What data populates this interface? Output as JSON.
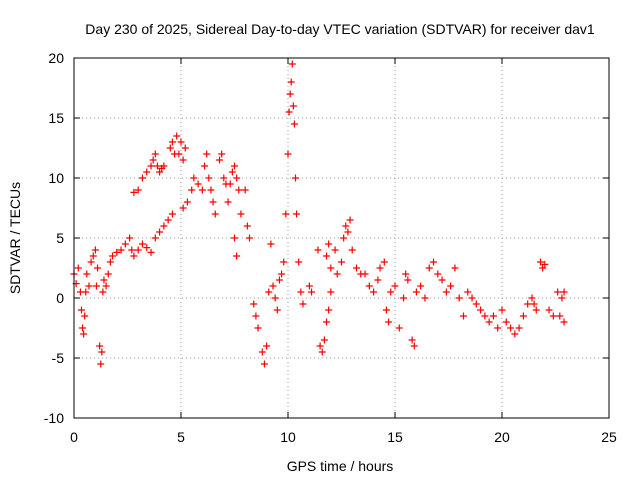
{
  "chart_data": {
    "type": "scatter",
    "title": "Day 230 of 2025, Sidereal Day-to-day VTEC variation (SDTVAR) for receiver dav1",
    "xlabel": "GPS time / hours",
    "ylabel": "SDTVAR / TECUs",
    "xlim": [
      0,
      25
    ],
    "ylim": [
      -10,
      20
    ],
    "xticks": [
      0,
      5,
      10,
      15,
      20,
      25
    ],
    "yticks": [
      -10,
      -5,
      0,
      5,
      10,
      15,
      20
    ],
    "xtick_labels": [
      "0",
      "5",
      "10",
      "15",
      "20",
      "25"
    ],
    "ytick_labels": [
      "-10",
      "-5",
      "0",
      "5",
      "10",
      "15",
      "20"
    ],
    "grid": true,
    "marker": "plus",
    "color": "#ff0000",
    "series": [
      {
        "name": "SDTVAR",
        "points": [
          [
            0.0,
            2.0
          ],
          [
            0.1,
            1.2
          ],
          [
            0.2,
            2.5
          ],
          [
            0.3,
            0.5
          ],
          [
            0.35,
            -1.0
          ],
          [
            0.4,
            -2.5
          ],
          [
            0.45,
            -3.0
          ],
          [
            0.5,
            -1.5
          ],
          [
            0.55,
            0.5
          ],
          [
            0.6,
            2.0
          ],
          [
            0.7,
            1.0
          ],
          [
            0.8,
            3.0
          ],
          [
            0.9,
            3.5
          ],
          [
            1.0,
            4.0
          ],
          [
            1.05,
            1.0
          ],
          [
            1.1,
            2.5
          ],
          [
            1.2,
            -4.0
          ],
          [
            1.25,
            -5.5
          ],
          [
            1.3,
            -4.5
          ],
          [
            1.35,
            0.5
          ],
          [
            1.4,
            1.5
          ],
          [
            1.5,
            1.0
          ],
          [
            1.6,
            2.0
          ],
          [
            1.7,
            3.0
          ],
          [
            1.8,
            3.5
          ],
          [
            2.0,
            3.8
          ],
          [
            2.2,
            4.0
          ],
          [
            2.4,
            4.5
          ],
          [
            2.6,
            5.0
          ],
          [
            2.7,
            4.0
          ],
          [
            2.8,
            8.8
          ],
          [
            3.0,
            9.0
          ],
          [
            3.2,
            10.0
          ],
          [
            3.4,
            10.5
          ],
          [
            3.6,
            11.0
          ],
          [
            3.7,
            11.5
          ],
          [
            3.8,
            12.0
          ],
          [
            3.9,
            11.0
          ],
          [
            4.0,
            10.5
          ],
          [
            4.1,
            10.8
          ],
          [
            4.2,
            11.0
          ],
          [
            2.8,
            3.5
          ],
          [
            3.0,
            4.0
          ],
          [
            3.2,
            4.5
          ],
          [
            3.4,
            4.2
          ],
          [
            3.6,
            3.8
          ],
          [
            3.8,
            5.0
          ],
          [
            4.0,
            5.5
          ],
          [
            4.2,
            6.0
          ],
          [
            4.4,
            6.5
          ],
          [
            4.6,
            7.0
          ],
          [
            4.5,
            12.5
          ],
          [
            4.6,
            13.0
          ],
          [
            4.7,
            12.0
          ],
          [
            4.8,
            13.5
          ],
          [
            4.9,
            12.0
          ],
          [
            5.0,
            13.0
          ],
          [
            5.1,
            11.5
          ],
          [
            5.2,
            12.5
          ],
          [
            5.1,
            7.5
          ],
          [
            5.3,
            8.0
          ],
          [
            5.5,
            9.0
          ],
          [
            5.6,
            10.0
          ],
          [
            5.8,
            9.5
          ],
          [
            6.0,
            9.0
          ],
          [
            6.1,
            11.0
          ],
          [
            6.2,
            12.0
          ],
          [
            6.3,
            10.0
          ],
          [
            6.4,
            9.0
          ],
          [
            6.5,
            8.0
          ],
          [
            6.6,
            7.0
          ],
          [
            6.8,
            11.5
          ],
          [
            6.9,
            12.0
          ],
          [
            7.0,
            10.0
          ],
          [
            7.1,
            9.5
          ],
          [
            7.2,
            8.0
          ],
          [
            7.3,
            9.5
          ],
          [
            7.4,
            10.5
          ],
          [
            7.5,
            11.0
          ],
          [
            7.6,
            10.0
          ],
          [
            7.7,
            9.0
          ],
          [
            7.5,
            5.0
          ],
          [
            7.6,
            3.5
          ],
          [
            7.8,
            7.0
          ],
          [
            8.0,
            9.0
          ],
          [
            8.1,
            6.0
          ],
          [
            8.2,
            5.0
          ],
          [
            8.4,
            -0.5
          ],
          [
            8.5,
            -1.5
          ],
          [
            8.6,
            -2.5
          ],
          [
            8.8,
            -4.5
          ],
          [
            8.9,
            -5.5
          ],
          [
            9.0,
            -4.0
          ],
          [
            9.1,
            0.5
          ],
          [
            9.2,
            4.5
          ],
          [
            9.3,
            1.0
          ],
          [
            9.4,
            0.0
          ],
          [
            9.5,
            -1.0
          ],
          [
            9.6,
            1.5
          ],
          [
            9.7,
            2.0
          ],
          [
            9.8,
            3.0
          ],
          [
            9.9,
            7.0
          ],
          [
            10.0,
            12.0
          ],
          [
            10.05,
            15.5
          ],
          [
            10.1,
            17.0
          ],
          [
            10.15,
            18.0
          ],
          [
            10.2,
            19.5
          ],
          [
            10.25,
            16.0
          ],
          [
            10.3,
            14.5
          ],
          [
            10.35,
            10.0
          ],
          [
            10.4,
            7.0
          ],
          [
            10.5,
            3.0
          ],
          [
            10.6,
            0.5
          ],
          [
            10.7,
            -0.5
          ],
          [
            11.0,
            1.0
          ],
          [
            11.1,
            0.5
          ],
          [
            11.4,
            4.0
          ],
          [
            11.5,
            -4.0
          ],
          [
            11.6,
            -4.5
          ],
          [
            11.7,
            -3.5
          ],
          [
            11.8,
            -2.0
          ],
          [
            11.9,
            -1.0
          ],
          [
            12.0,
            0.5
          ],
          [
            11.8,
            3.5
          ],
          [
            11.9,
            4.5
          ],
          [
            12.0,
            2.5
          ],
          [
            12.2,
            4.0
          ],
          [
            12.3,
            2.0
          ],
          [
            12.5,
            3.0
          ],
          [
            12.6,
            5.0
          ],
          [
            12.7,
            6.0
          ],
          [
            12.8,
            5.5
          ],
          [
            12.9,
            6.5
          ],
          [
            13.0,
            4.0
          ],
          [
            13.2,
            2.5
          ],
          [
            13.4,
            2.0
          ],
          [
            13.6,
            2.0
          ],
          [
            13.8,
            1.0
          ],
          [
            14.0,
            0.5
          ],
          [
            14.2,
            1.5
          ],
          [
            14.3,
            2.5
          ],
          [
            14.5,
            3.0
          ],
          [
            14.6,
            -1.0
          ],
          [
            14.7,
            -2.0
          ],
          [
            14.8,
            0.5
          ],
          [
            15.0,
            1.0
          ],
          [
            15.2,
            -2.5
          ],
          [
            15.4,
            0.0
          ],
          [
            15.5,
            2.0
          ],
          [
            15.6,
            1.5
          ],
          [
            15.8,
            -3.5
          ],
          [
            15.9,
            -4.0
          ],
          [
            16.0,
            0.5
          ],
          [
            16.2,
            1.0
          ],
          [
            16.4,
            0.0
          ],
          [
            16.6,
            2.5
          ],
          [
            16.8,
            3.0
          ],
          [
            17.0,
            2.0
          ],
          [
            17.2,
            1.5
          ],
          [
            17.4,
            0.5
          ],
          [
            17.6,
            1.0
          ],
          [
            17.8,
            2.5
          ],
          [
            18.0,
            0.0
          ],
          [
            18.2,
            -1.5
          ],
          [
            18.4,
            0.5
          ],
          [
            18.6,
            0.0
          ],
          [
            18.8,
            -0.5
          ],
          [
            19.0,
            -1.0
          ],
          [
            19.2,
            -1.5
          ],
          [
            19.4,
            -2.0
          ],
          [
            19.6,
            -1.5
          ],
          [
            19.8,
            -2.5
          ],
          [
            20.0,
            -1.0
          ],
          [
            20.2,
            -2.0
          ],
          [
            20.4,
            -2.5
          ],
          [
            20.6,
            -3.0
          ],
          [
            20.8,
            -2.5
          ],
          [
            21.0,
            -1.5
          ],
          [
            21.2,
            -0.5
          ],
          [
            21.4,
            0.0
          ],
          [
            21.5,
            -0.5
          ],
          [
            21.6,
            -1.0
          ],
          [
            21.8,
            3.0
          ],
          [
            21.9,
            2.5
          ],
          [
            22.0,
            2.8
          ],
          [
            22.2,
            -1.0
          ],
          [
            22.4,
            -1.5
          ],
          [
            22.6,
            0.5
          ],
          [
            22.7,
            -1.5
          ],
          [
            22.8,
            0.0
          ],
          [
            22.9,
            -2.0
          ],
          [
            22.9,
            0.5
          ]
        ]
      }
    ]
  }
}
